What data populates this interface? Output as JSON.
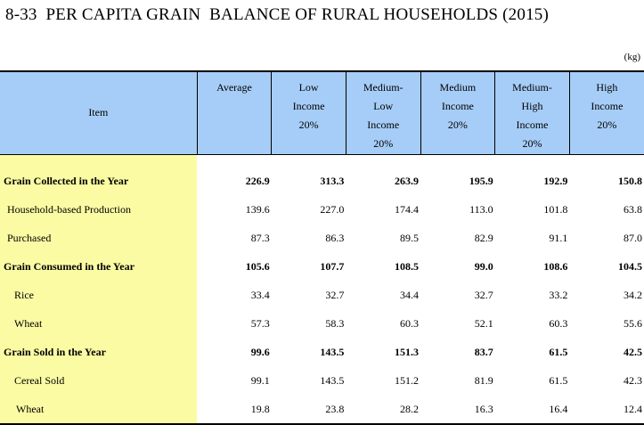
{
  "title": "8-33  PER CAPITA GRAIN  BALANCE OF RURAL HOUSEHOLDS (2015)",
  "unit": "(kg)",
  "header": {
    "item": "Item",
    "columns": [
      [
        "Average"
      ],
      [
        "Low",
        "Income",
        "20%"
      ],
      [
        "Medium-",
        "Low",
        "Income",
        "20%"
      ],
      [
        "Medium",
        "Income",
        "20%"
      ],
      [
        "Medium-",
        "High",
        "Income",
        "20%"
      ],
      [
        "High",
        "Income",
        "20%"
      ]
    ]
  },
  "rows": [
    {
      "label": "Grain Collected in the Year",
      "bold": true,
      "indent": 0,
      "values": [
        "226.9",
        "313.3",
        "263.9",
        "195.9",
        "192.9",
        "150.8"
      ]
    },
    {
      "label": "Household-based Production",
      "bold": false,
      "indent": 1,
      "values": [
        "139.6",
        "227.0",
        "174.4",
        "113.0",
        "101.8",
        "63.8"
      ]
    },
    {
      "label": "Purchased",
      "bold": false,
      "indent": 1,
      "values": [
        "87.3",
        "86.3",
        "89.5",
        "82.9",
        "91.1",
        "87.0"
      ]
    },
    {
      "label": "Grain Consumed in the Year",
      "bold": true,
      "indent": 0,
      "values": [
        "105.6",
        "107.7",
        "108.5",
        "99.0",
        "108.6",
        "104.5"
      ]
    },
    {
      "label": "Rice",
      "bold": false,
      "indent": 2,
      "values": [
        "33.4",
        "32.7",
        "34.4",
        "32.7",
        "33.2",
        "34.2"
      ]
    },
    {
      "label": "Wheat",
      "bold": false,
      "indent": 2,
      "values": [
        "57.3",
        "58.3",
        "60.3",
        "52.1",
        "60.3",
        "55.6"
      ]
    },
    {
      "label": "Grain Sold in the Year",
      "bold": true,
      "indent": 0,
      "values": [
        "99.6",
        "143.5",
        "151.3",
        "83.7",
        "61.5",
        "42.5"
      ]
    },
    {
      "label": "Cereal Sold",
      "bold": false,
      "indent": 2,
      "values": [
        "99.1",
        "143.5",
        "151.2",
        "81.9",
        "61.5",
        "42.3"
      ]
    },
    {
      "label": "Wheat",
      "bold": false,
      "indent": 3,
      "values": [
        "19.8",
        "23.8",
        "28.2",
        "16.3",
        "16.4",
        "12.4"
      ]
    }
  ]
}
